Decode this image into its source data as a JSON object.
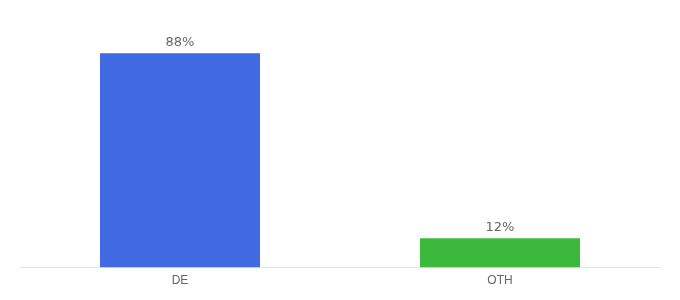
{
  "chart_data": {
    "type": "bar",
    "categories": [
      "DE",
      "OTH"
    ],
    "values": [
      88,
      12
    ],
    "value_labels": [
      "88%",
      "12%"
    ],
    "colors": [
      "#4169e1",
      "#3cb83c"
    ],
    "ylim": [
      0,
      100
    ],
    "grid": false,
    "data_labels": true,
    "tick_labels": "x"
  }
}
